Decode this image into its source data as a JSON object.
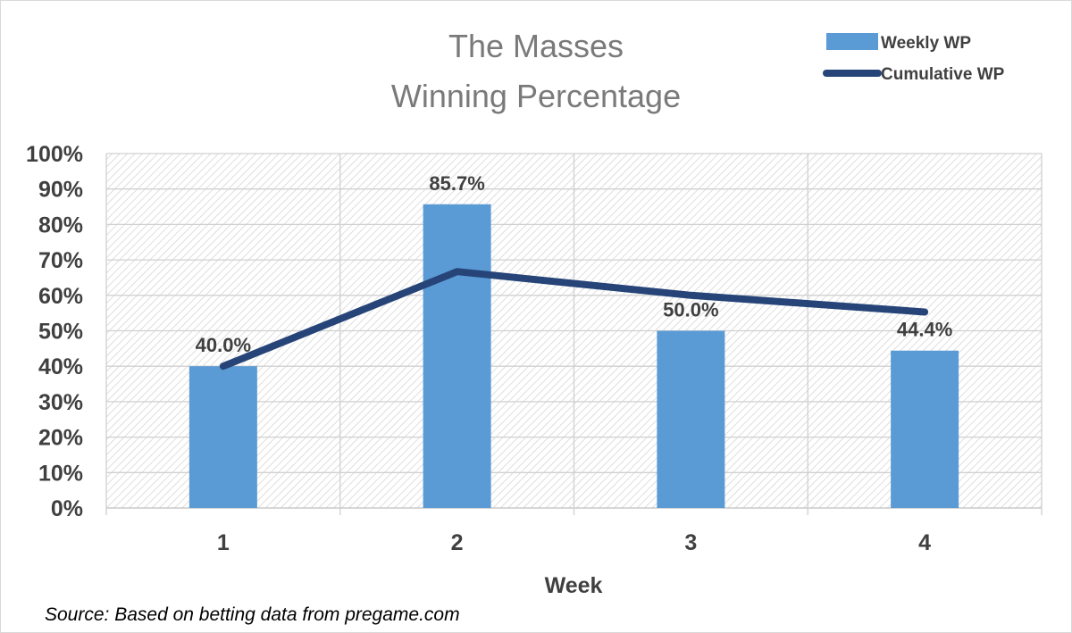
{
  "chart_data": {
    "type": "bar",
    "title_lines": [
      "The Masses",
      "Winning Percentage"
    ],
    "xlabel": "Week",
    "ylabel": "",
    "categories": [
      "1",
      "2",
      "3",
      "4"
    ],
    "ylim": [
      0,
      100
    ],
    "yticks": [
      "0%",
      "10%",
      "20%",
      "30%",
      "40%",
      "50%",
      "60%",
      "70%",
      "80%",
      "90%",
      "100%"
    ],
    "series": [
      {
        "name": "Weekly WP",
        "kind": "bar",
        "values": [
          40.0,
          85.7,
          50.0,
          44.4
        ],
        "labels": [
          "40.0%",
          "85.7%",
          "50.0%",
          "44.4%"
        ],
        "color": "#5b9bd5"
      },
      {
        "name": "Cumulative WP",
        "kind": "line",
        "values": [
          40.0,
          66.7,
          60.0,
          55.3
        ],
        "color": "#264478"
      }
    ],
    "grid": true,
    "plot_background": "diagonal hatch",
    "legend_position": "top-right"
  },
  "source_note": "Source: Based on betting data from pregame.com"
}
